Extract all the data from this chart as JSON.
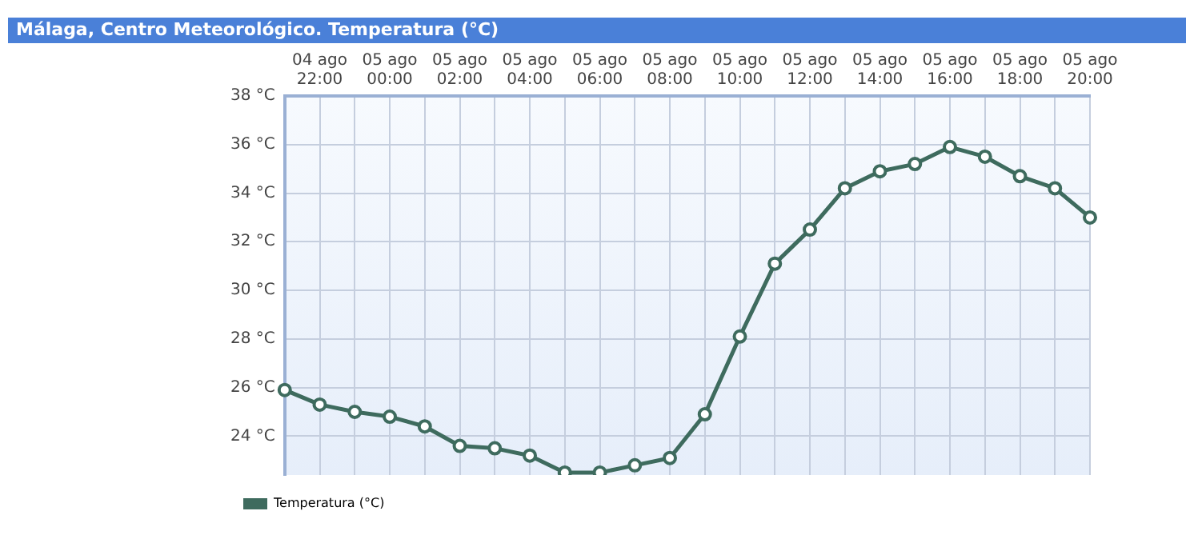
{
  "chart_data": {
    "type": "line",
    "title": "Málaga, Centro Meteorológico. Temperatura (°C)",
    "categories": [
      null,
      "04 ago 22:00",
      null,
      "05 ago 00:00",
      null,
      "05 ago 02:00",
      null,
      "05 ago 04:00",
      null,
      "05 ago 06:00",
      null,
      "05 ago 08:00",
      null,
      "05 ago 10:00",
      null,
      "05 ago 12:00",
      null,
      "05 ago 14:00",
      null,
      "05 ago 16:00",
      null,
      "05 ago 18:00",
      null,
      "05 ago 20:00"
    ],
    "series": [
      {
        "name": "Temperatura (°C)",
        "color": "#3e6b5e",
        "values": [
          25.9,
          25.3,
          25.0,
          24.8,
          24.4,
          23.6,
          23.5,
          23.2,
          22.5,
          22.5,
          22.8,
          23.1,
          24.9,
          28.1,
          31.1,
          32.5,
          34.2,
          34.9,
          35.2,
          35.9,
          35.5,
          34.7,
          34.2,
          33.0
        ]
      }
    ],
    "ylim": [
      22.4,
      38
    ],
    "yticks": [
      {
        "value": 24,
        "label": "24 °C"
      },
      {
        "value": 26,
        "label": "26 °C"
      },
      {
        "value": 28,
        "label": "28 °C"
      },
      {
        "value": 30,
        "label": "30 °C"
      },
      {
        "value": 32,
        "label": "32 °C"
      },
      {
        "value": 34,
        "label": "34 °C"
      },
      {
        "value": 36,
        "label": "36 °C"
      },
      {
        "value": 38,
        "label": "38 °C"
      }
    ],
    "grid": true,
    "legend": "bottom left",
    "marker": "circle",
    "line_style": "solid"
  }
}
